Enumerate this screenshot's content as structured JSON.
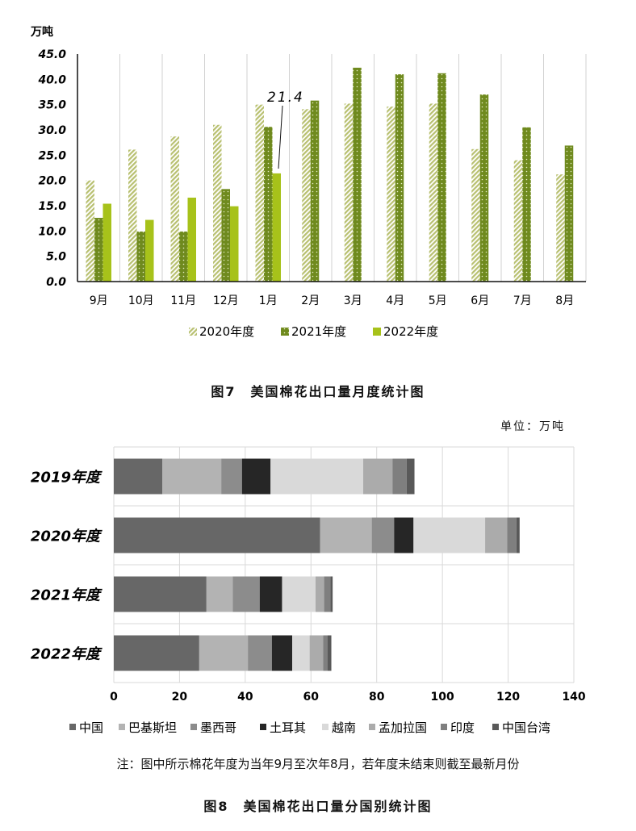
{
  "chart_data": [
    {
      "type": "bar",
      "unit": "万吨",
      "categories": [
        "9月",
        "10月",
        "11月",
        "12月",
        "1月",
        "2月",
        "3月",
        "4月",
        "5月",
        "6月",
        "7月",
        "8月"
      ],
      "series": [
        {
          "name": "2020年度",
          "color": "#b8c070",
          "values": [
            20.0,
            26.1,
            28.7,
            31.0,
            35.0,
            34.1,
            35.2,
            34.6,
            35.2,
            26.2,
            24.0,
            21.2
          ]
        },
        {
          "name": "2021年度",
          "color": "#6f8a1e",
          "values": [
            12.6,
            9.9,
            9.9,
            18.3,
            30.6,
            35.8,
            42.3,
            41.0,
            41.2,
            37.0,
            30.5,
            26.9
          ]
        },
        {
          "name": "2022年度",
          "color": "#a7c21a",
          "values": [
            15.4,
            12.2,
            16.6,
            14.9,
            21.4,
            null,
            null,
            null,
            null,
            null,
            null,
            null
          ]
        }
      ],
      "ylim": [
        0,
        45
      ],
      "yticks": [
        "0.0",
        "5.0",
        "10.0",
        "15.0",
        "20.0",
        "25.0",
        "30.0",
        "35.0",
        "40.0",
        "45.0"
      ],
      "annotation": "21.4",
      "legend_position": "bottom",
      "caption": "图7　美国棉花出口量月度统计图"
    },
    {
      "type": "bar",
      "orientation": "horizontal",
      "stacked": true,
      "unit": "单位：万吨",
      "categories": [
        "2019年度",
        "2020年度",
        "2021年度",
        "2022年度"
      ],
      "series": [
        {
          "name": "中国",
          "color": "#676767",
          "values": [
            14.8,
            62.8,
            28.2,
            26.0
          ]
        },
        {
          "name": "巴基斯坦",
          "color": "#b3b3b3",
          "values": [
            17.9,
            15.7,
            8.0,
            14.8
          ]
        },
        {
          "name": "墨西哥",
          "color": "#8c8c8c",
          "values": [
            6.3,
            6.8,
            8.2,
            7.3
          ]
        },
        {
          "name": "土耳其",
          "color": "#262626",
          "values": [
            8.7,
            5.9,
            6.8,
            6.2
          ]
        },
        {
          "name": "越南",
          "color": "#d9d9d9",
          "values": [
            28.2,
            21.8,
            10.2,
            5.3
          ]
        },
        {
          "name": "孟加拉国",
          "color": "#ababab",
          "values": [
            8.9,
            6.7,
            2.6,
            4.1
          ]
        },
        {
          "name": "印度",
          "color": "#7f7f7f",
          "values": [
            4.3,
            2.8,
            1.9,
            1.3
          ]
        },
        {
          "name": "中国台湾",
          "color": "#595959",
          "values": [
            2.4,
            1.0,
            0.7,
            1.2
          ]
        }
      ],
      "xlim": [
        0,
        140
      ],
      "xticks": [
        "0",
        "20",
        "40",
        "60",
        "80",
        "100",
        "120",
        "140"
      ],
      "legend_position": "bottom",
      "note": "注：图中所示棉花年度为当年9月至次年8月，若年度未结束则截至最新月份",
      "caption": "图8　美国棉花出口量分国别统计图"
    }
  ]
}
